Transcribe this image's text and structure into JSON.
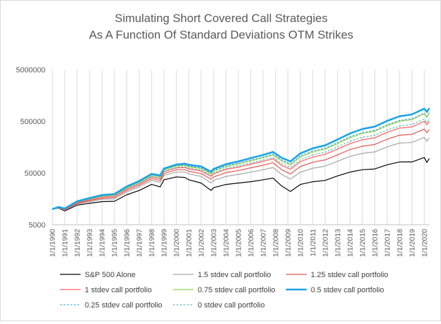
{
  "chart_data": {
    "type": "line",
    "title": [
      "Simulating Short Covered Call Strategies",
      "As A Function Of Standard Deviations OTM Strikes"
    ],
    "xlabel": "",
    "ylabel": "",
    "y_scale": "log",
    "ylim": [
      5000,
      5000000
    ],
    "y_ticks": [
      "5000",
      "50000",
      "500000",
      "5000000"
    ],
    "y_tick_values": [
      5000,
      50000,
      500000,
      5000000
    ],
    "x_ticks": [
      "1/1/1990",
      "1/1/1991",
      "1/1/1992",
      "1/1/1993",
      "1/1/1994",
      "1/1/1995",
      "1/1/1996",
      "1/1/1997",
      "1/1/1998",
      "1/1/1999",
      "1/1/2000",
      "1/1/2001",
      "1/1/2002",
      "1/1/2003",
      "1/1/2004",
      "1/1/2005",
      "1/1/2006",
      "1/1/2007",
      "1/1/2008",
      "1/1/2009",
      "1/1/2010",
      "1/1/2011",
      "1/1/2012",
      "1/1/2013",
      "1/1/2014",
      "1/1/2015",
      "1/1/2016",
      "1/1/2017",
      "1/1/2018",
      "1/1/2019",
      "1/1/2020"
    ],
    "x": [
      1990,
      1990.5,
      1991,
      1992,
      1993,
      1994,
      1995,
      1996,
      1997,
      1998,
      1998.7,
      1999,
      2000,
      2000.7,
      2001,
      2002,
      2002.8,
      2003,
      2004,
      2005,
      2006,
      2007,
      2007.8,
      2008.5,
      2009.2,
      2010,
      2011,
      2012,
      2013,
      2014,
      2015,
      2016,
      2017,
      2018,
      2019,
      2020,
      2020.2,
      2020.4
    ],
    "grid": "vertical",
    "legend_position": "bottom",
    "series": [
      {
        "name": "S&P 500 Alone",
        "color": "#000000",
        "style": "solid",
        "width": 1.2,
        "values": [
          10000,
          10500,
          9200,
          12000,
          13000,
          14000,
          14200,
          19000,
          23000,
          30000,
          27000,
          37000,
          42000,
          41000,
          37000,
          32000,
          23000,
          26000,
          30000,
          32000,
          34000,
          37000,
          40000,
          28000,
          22000,
          30000,
          34000,
          36000,
          44000,
          52000,
          58000,
          60000,
          72000,
          82000,
          82000,
          100000,
          80000,
          96000
        ]
      },
      {
        "name": "1.5 stdev call portfolio",
        "color": "#a5a5a5",
        "style": "solid",
        "width": 1.2,
        "values": [
          10000,
          10600,
          9500,
          12600,
          14000,
          15500,
          15800,
          21500,
          27000,
          36000,
          33000,
          45000,
          52000,
          52000,
          48000,
          43000,
          32000,
          36000,
          43000,
          47000,
          52000,
          58000,
          64000,
          47000,
          38000,
          52000,
          62000,
          68000,
          84000,
          105000,
          120000,
          128000,
          160000,
          190000,
          195000,
          245000,
          205000,
          240000
        ]
      },
      {
        "name": "1.25 stdev call portfolio",
        "color": "#e2544f",
        "style": "solid",
        "width": 1.2,
        "values": [
          10000,
          10700,
          9700,
          13000,
          14600,
          16300,
          16800,
          23000,
          29000,
          39000,
          36000,
          49000,
          58000,
          58000,
          54000,
          49000,
          38000,
          42000,
          51000,
          56000,
          63000,
          71000,
          79000,
          58000,
          48000,
          67000,
          81000,
          90000,
          112000,
          142000,
          165000,
          178000,
          225000,
          270000,
          280000,
          355000,
          300000,
          350000
        ]
      },
      {
        "name": "1 stdev call portfolio",
        "color": "#ff5a5a",
        "style": "solid",
        "width": 1.2,
        "values": [
          10000,
          10800,
          9900,
          13400,
          15200,
          17200,
          17800,
          24500,
          31000,
          42000,
          39000,
          53000,
          63000,
          64000,
          60000,
          55000,
          43000,
          48000,
          59000,
          65000,
          74000,
          84000,
          94000,
          70000,
          59000,
          83000,
          102000,
          115000,
          145000,
          185000,
          220000,
          240000,
          305000,
          370000,
          390000,
          500000,
          430000,
          500000
        ]
      },
      {
        "name": "0.75 stdev call portfolio",
        "color": "#92d050",
        "style": "solid",
        "width": 1.2,
        "values": [
          10000,
          10900,
          10100,
          13800,
          15800,
          18000,
          18700,
          26000,
          33000,
          45000,
          42000,
          57000,
          68000,
          70000,
          66000,
          61000,
          48000,
          54000,
          67000,
          75000,
          86000,
          99000,
          112000,
          85000,
          72000,
          102000,
          127000,
          145000,
          185000,
          240000,
          290000,
          320000,
          410000,
          500000,
          540000,
          700000,
          600000,
          720000
        ]
      },
      {
        "name": "0.5 stdev call portfolio",
        "color": "#1aa3e8",
        "style": "solid",
        "width": 2.6,
        "values": [
          10000,
          11000,
          10300,
          14200,
          16400,
          18800,
          19600,
          27500,
          35000,
          48000,
          45000,
          61000,
          73000,
          76000,
          72000,
          67000,
          53000,
          60000,
          74000,
          84000,
          97000,
          112000,
          128000,
          98000,
          84000,
          120000,
          150000,
          172000,
          222000,
          290000,
          355000,
          395000,
          510000,
          625000,
          680000,
          880000,
          760000,
          900000
        ]
      },
      {
        "name": "0.25 stdev call portfolio",
        "color": "#2e9fd6",
        "style": "dashed",
        "width": 1.1,
        "values": [
          10000,
          11000,
          10200,
          14000,
          16000,
          18300,
          19000,
          26500,
          33500,
          46000,
          43000,
          58000,
          69000,
          72000,
          68000,
          63000,
          50000,
          56000,
          69000,
          78000,
          89000,
          102000,
          116000,
          89000,
          76000,
          108000,
          134000,
          152000,
          195000,
          252000,
          305000,
          335000,
          430000,
          520000,
          560000,
          720000,
          620000,
          740000
        ]
      },
      {
        "name": "0 stdev call portfolio",
        "color": "#4fb6a8",
        "style": "dashed",
        "width": 1.1,
        "values": [
          10000,
          10900,
          10100,
          13700,
          15500,
          17600,
          18200,
          25000,
          31500,
          43000,
          40000,
          54000,
          64000,
          66000,
          62000,
          57000,
          45000,
          50000,
          62000,
          69000,
          78000,
          89000,
          100000,
          76000,
          64000,
          91000,
          112000,
          126000,
          160000,
          205000,
          245000,
          268000,
          340000,
          405000,
          435000,
          550000,
          470000,
          560000
        ]
      }
    ]
  }
}
